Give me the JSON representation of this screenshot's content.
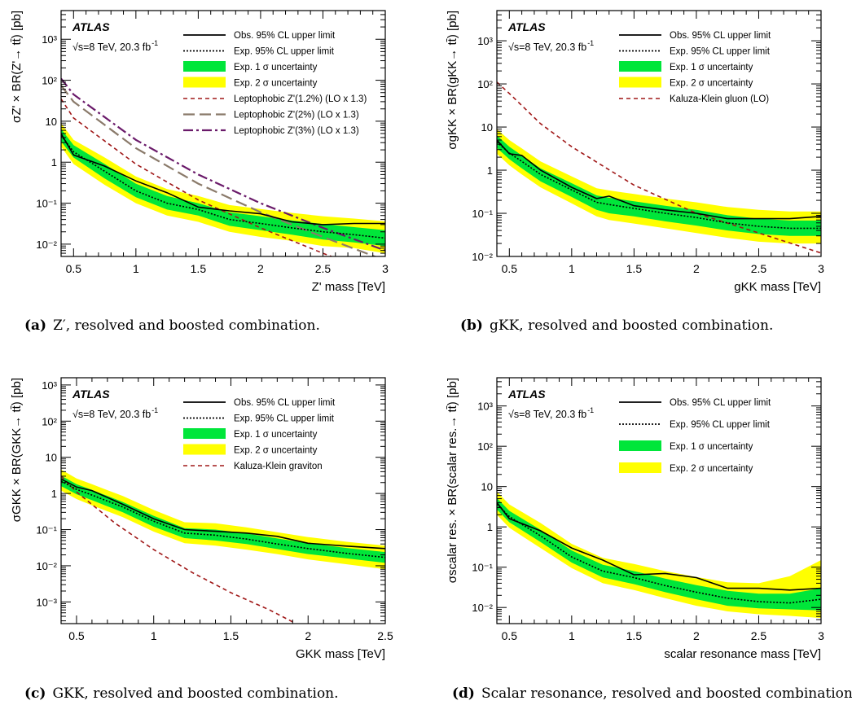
{
  "colors": {
    "green": "#00e63a",
    "yellow": "#ffff00",
    "z12": "#a01818",
    "z2": "#8a7a6a",
    "z3": "#6a1a6a",
    "gkk": "#a01818",
    "grav": "#a01818"
  },
  "chart_data": [
    {
      "type": "line",
      "id": "a",
      "atlas": "ATLAS",
      "lumi": "√s=8 TeV, 20.3 fb",
      "lumi_sup": "-1",
      "ylabel": "σZ' × BR(Z'→ tt̄) [pb]",
      "xlabel": "Z' mass [TeV]",
      "xlim": [
        0.4,
        3.0
      ],
      "ylog": [
        -2.3,
        3.7
      ],
      "xticks": [
        0.5,
        1,
        1.5,
        2,
        2.5,
        3
      ],
      "xtick_labels": [
        "0.5",
        "1",
        "1.5",
        "2",
        "2.5",
        "3"
      ],
      "ytick_labels": [
        "10⁻²",
        "10⁻¹",
        "1",
        "10",
        "10²",
        "10³"
      ],
      "yticks": [
        0.01,
        0.1,
        1,
        10,
        100,
        1000
      ],
      "caption_label": "(a)",
      "caption_text": "Z′, resolved and boosted combination.",
      "legend": [
        "Obs. 95% CL upper limit",
        "Exp. 95% CL upper limit",
        "Exp. 1 σ uncertainty",
        "Exp. 2 σ uncertainty",
        "Leptophobic Z'(1.2%) (LO x 1.3)",
        "Leptophobic Z'(2%) (LO x 1.3)",
        "Leptophobic Z'(3%) (LO x 1.3)"
      ],
      "x": [
        0.4,
        0.5,
        0.75,
        1.0,
        1.25,
        1.5,
        1.75,
        2.0,
        2.25,
        2.5,
        2.75,
        3.0
      ],
      "obs": [
        5,
        1.5,
        0.8,
        0.35,
        0.18,
        0.08,
        0.065,
        0.055,
        0.035,
        0.03,
        0.032,
        0.032
      ],
      "exp": [
        4.5,
        1.8,
        0.6,
        0.2,
        0.1,
        0.07,
        0.04,
        0.032,
        0.025,
        0.02,
        0.017,
        0.014
      ],
      "one_lo": [
        3.2,
        1.3,
        0.4,
        0.14,
        0.07,
        0.05,
        0.028,
        0.022,
        0.017,
        0.013,
        0.011,
        0.009
      ],
      "one_hi": [
        6.5,
        2.6,
        0.9,
        0.3,
        0.15,
        0.1,
        0.06,
        0.048,
        0.038,
        0.031,
        0.026,
        0.022
      ],
      "two_lo": [
        2.4,
        0.9,
        0.28,
        0.1,
        0.05,
        0.035,
        0.02,
        0.015,
        0.012,
        0.009,
        0.008,
        0.006
      ],
      "two_hi": [
        9,
        3.5,
        1.3,
        0.45,
        0.22,
        0.15,
        0.09,
        0.072,
        0.058,
        0.048,
        0.042,
        0.036
      ],
      "theory": [
        {
          "x": [
            0.4,
            0.5,
            1.0,
            1.5,
            2.0,
            2.5,
            3.0
          ],
          "y": [
            35,
            12,
            0.9,
            0.12,
            0.025,
            0.006,
            0.0016
          ],
          "color": "z12",
          "dash": "5,4",
          "width": 1.6
        },
        {
          "x": [
            0.4,
            0.5,
            1.0,
            1.5,
            2.0,
            2.5,
            3.0
          ],
          "y": [
            75,
            30,
            2.2,
            0.3,
            0.06,
            0.015,
            0.004
          ],
          "color": "z2",
          "dash": "14,6",
          "width": 2.2
        },
        {
          "x": [
            0.4,
            0.5,
            1.0,
            1.5,
            2.0,
            2.5,
            3.0
          ],
          "y": [
            110,
            45,
            3.5,
            0.5,
            0.1,
            0.025,
            0.007
          ],
          "color": "z3",
          "dash": "12,4,3,4",
          "width": 2.2
        }
      ]
    },
    {
      "type": "line",
      "id": "b",
      "atlas": "ATLAS",
      "lumi": "√s=8 TeV, 20.3 fb",
      "lumi_sup": "-1",
      "ylabel": "σgKK × BR(gKK→ tt̄) [pb]",
      "xlabel": "gKK mass [TeV]",
      "xlim": [
        0.4,
        3.0
      ],
      "ylog": [
        -2.0,
        3.7
      ],
      "xticks": [
        0.5,
        1,
        1.5,
        2,
        2.5,
        3
      ],
      "xtick_labels": [
        "0.5",
        "1",
        "1.5",
        "2",
        "2.5",
        "3"
      ],
      "ytick_labels": [
        "10⁻²",
        "10⁻¹",
        "1",
        "10",
        "10²",
        "10³"
      ],
      "yticks": [
        0.01,
        0.1,
        1,
        10,
        100,
        1000
      ],
      "caption_label": "(b)",
      "caption_text": "gKK, resolved and boosted combination.",
      "legend": [
        "Obs. 95% CL upper limit",
        "Exp. 95% CL upper limit",
        "Exp. 1 σ uncertainty",
        "Exp. 2 σ uncertainty",
        "Kaluza-Klein gluon (LO)"
      ],
      "x": [
        0.4,
        0.5,
        0.6,
        0.75,
        1.0,
        1.2,
        1.3,
        1.5,
        1.75,
        2.0,
        2.25,
        2.5,
        2.75,
        3.0
      ],
      "obs": [
        5,
        2.4,
        2.2,
        1.0,
        0.4,
        0.22,
        0.25,
        0.15,
        0.12,
        0.1,
        0.075,
        0.075,
        0.075,
        0.085
      ],
      "exp": [
        4.5,
        2.5,
        1.6,
        0.8,
        0.35,
        0.18,
        0.16,
        0.13,
        0.1,
        0.08,
        0.06,
        0.05,
        0.045,
        0.045
      ],
      "one_lo": [
        3.3,
        1.8,
        1.1,
        0.55,
        0.24,
        0.12,
        0.1,
        0.085,
        0.065,
        0.052,
        0.04,
        0.033,
        0.03,
        0.03
      ],
      "one_hi": [
        6.4,
        3.5,
        2.2,
        1.1,
        0.5,
        0.26,
        0.23,
        0.19,
        0.15,
        0.12,
        0.09,
        0.075,
        0.068,
        0.068
      ],
      "two_lo": [
        2.4,
        1.3,
        0.8,
        0.4,
        0.17,
        0.085,
        0.07,
        0.058,
        0.045,
        0.035,
        0.027,
        0.022,
        0.02,
        0.02
      ],
      "two_hi": [
        9,
        5,
        3.2,
        1.6,
        0.72,
        0.38,
        0.34,
        0.28,
        0.22,
        0.18,
        0.14,
        0.12,
        0.11,
        0.11
      ],
      "theory": [
        {
          "x": [
            0.4,
            0.5,
            0.75,
            1.0,
            1.5,
            2.0,
            2.5,
            3.0
          ],
          "y": [
            110,
            60,
            12,
            3.5,
            0.45,
            0.1,
            0.035,
            0.012
          ],
          "color": "gkk",
          "dash": "5,4",
          "width": 1.6
        }
      ]
    },
    {
      "type": "line",
      "id": "c",
      "atlas": "ATLAS",
      "lumi": "√s=8 TeV, 20.3 fb",
      "lumi_sup": "-1",
      "ylabel": "σGKK × BR(GKK→ tt̄) [pb]",
      "xlabel": "GKK mass [TeV]",
      "xlim": [
        0.4,
        2.5
      ],
      "ylog": [
        -3.6,
        3.2
      ],
      "xticks": [
        0.5,
        1,
        1.5,
        2,
        2.5
      ],
      "xtick_labels": [
        "0.5",
        "1",
        "1.5",
        "2",
        "2.5"
      ],
      "ytick_labels": [
        "10⁻³",
        "10⁻²",
        "10⁻¹",
        "1",
        "10",
        "10²",
        "10³"
      ],
      "yticks": [
        0.001,
        0.01,
        0.1,
        1,
        10,
        100,
        1000
      ],
      "caption_label": "(c)",
      "caption_text": "GKK, resolved and boosted combination.",
      "legend": [
        "Obs. 95% CL upper limit",
        "Exp. 95% CL upper limit",
        "Exp. 1 σ uncertainty",
        "Exp. 2 σ uncertainty",
        "Kaluza-Klein graviton"
      ],
      "x": [
        0.4,
        0.5,
        0.6,
        0.8,
        1.0,
        1.2,
        1.4,
        1.6,
        1.8,
        2.0,
        2.25,
        2.5
      ],
      "obs": [
        2.5,
        1.5,
        1.2,
        0.5,
        0.2,
        0.1,
        0.09,
        0.08,
        0.065,
        0.042,
        0.035,
        0.03
      ],
      "exp": [
        2.2,
        1.3,
        0.9,
        0.42,
        0.17,
        0.08,
        0.07,
        0.055,
        0.04,
        0.03,
        0.022,
        0.017
      ],
      "one_lo": [
        1.6,
        0.95,
        0.65,
        0.3,
        0.12,
        0.058,
        0.05,
        0.04,
        0.029,
        0.021,
        0.016,
        0.012
      ],
      "one_hi": [
        3.1,
        1.8,
        1.25,
        0.58,
        0.24,
        0.11,
        0.1,
        0.078,
        0.057,
        0.042,
        0.031,
        0.024
      ],
      "two_lo": [
        1.2,
        0.7,
        0.47,
        0.22,
        0.088,
        0.042,
        0.036,
        0.028,
        0.021,
        0.015,
        0.011,
        0.008
      ],
      "two_hi": [
        4.6,
        2.6,
        1.8,
        0.85,
        0.35,
        0.16,
        0.15,
        0.115,
        0.085,
        0.062,
        0.046,
        0.036
      ],
      "theory": [
        {
          "x": [
            0.4,
            0.5,
            0.75,
            1.0,
            1.25,
            1.5,
            1.75,
            1.9
          ],
          "y": [
            3,
            1.1,
            0.15,
            0.028,
            0.0065,
            0.0018,
            0.0006,
            0.00028
          ],
          "color": "grav",
          "dash": "5,4",
          "width": 1.6
        }
      ]
    },
    {
      "type": "line",
      "id": "d",
      "atlas": "ATLAS",
      "lumi": "√s=8 TeV, 20.3 fb",
      "lumi_sup": "-1",
      "ylabel": "σscalar res. × BR(scalar res.→ tt̄) [pb]",
      "xlabel": "scalar resonance mass [TeV]",
      "xlim": [
        0.4,
        3.0
      ],
      "ylog": [
        -2.4,
        3.7
      ],
      "xticks": [
        0.5,
        1,
        1.5,
        2,
        2.5,
        3
      ],
      "xtick_labels": [
        "0.5",
        "1",
        "1.5",
        "2",
        "2.5",
        "3"
      ],
      "ytick_labels": [
        "10⁻²",
        "10⁻¹",
        "1",
        "10",
        "10²",
        "10³"
      ],
      "yticks": [
        0.01,
        0.1,
        1,
        10,
        100,
        1000
      ],
      "caption_label": "(d)",
      "caption_text": "Scalar resonance, resolved and boosted combination.",
      "legend": [
        "Obs. 95% CL upper limit",
        "Exp. 95% CL upper limit",
        "Exp. 1 σ uncertainty",
        "Exp. 2 σ uncertainty"
      ],
      "x": [
        0.4,
        0.5,
        0.75,
        1.0,
        1.25,
        1.5,
        1.75,
        2.0,
        2.25,
        2.5,
        2.75,
        3.0
      ],
      "obs": [
        4,
        1.6,
        0.8,
        0.3,
        0.15,
        0.065,
        0.07,
        0.055,
        0.03,
        0.03,
        0.027,
        0.03
      ],
      "exp": [
        3.7,
        1.8,
        0.6,
        0.18,
        0.08,
        0.055,
        0.035,
        0.024,
        0.017,
        0.014,
        0.013,
        0.016
      ],
      "one_lo": [
        2.7,
        1.3,
        0.42,
        0.13,
        0.056,
        0.038,
        0.024,
        0.016,
        0.011,
        0.0095,
        0.009,
        0.0085
      ],
      "one_hi": [
        5.2,
        2.5,
        0.85,
        0.26,
        0.115,
        0.08,
        0.052,
        0.036,
        0.026,
        0.022,
        0.022,
        0.03
      ],
      "two_lo": [
        2.0,
        0.95,
        0.3,
        0.095,
        0.04,
        0.027,
        0.017,
        0.011,
        0.008,
        0.0068,
        0.0062,
        0.0055
      ],
      "two_hi": [
        7.5,
        3.6,
        1.25,
        0.38,
        0.17,
        0.12,
        0.08,
        0.057,
        0.042,
        0.04,
        0.06,
        0.15
      ],
      "theory": []
    }
  ]
}
